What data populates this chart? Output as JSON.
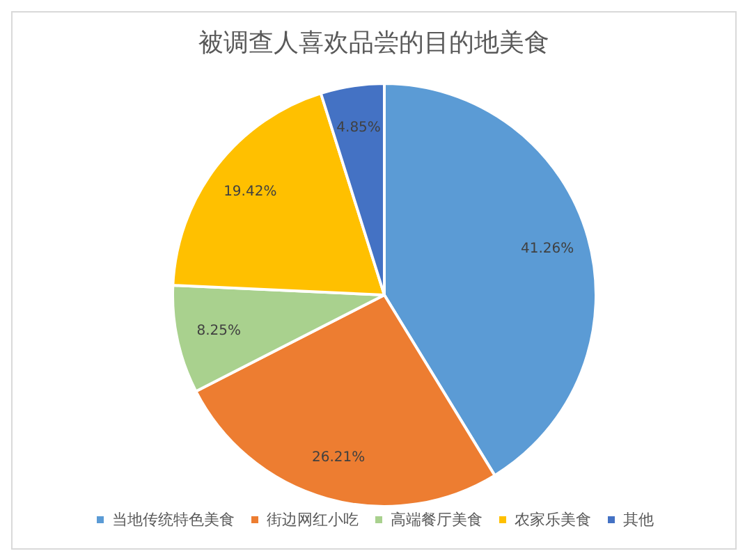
{
  "chart_data": {
    "type": "pie",
    "title": "被调查人喜欢品尝的目的地美食",
    "categories": [
      "当地传统特色美食",
      "街边网红小吃",
      "高端餐厅美食",
      "农家乐美食",
      "其他"
    ],
    "values": [
      41.26,
      26.21,
      8.25,
      19.42,
      4.85
    ],
    "colors": [
      "#5b9bd5",
      "#ed7d31",
      "#a9d18e",
      "#ffc000",
      "#4472c4"
    ],
    "value_labels": [
      "41.26%",
      "26.21%",
      "8.25%",
      "19.42%",
      "4.85%"
    ],
    "legend": "bottom"
  }
}
